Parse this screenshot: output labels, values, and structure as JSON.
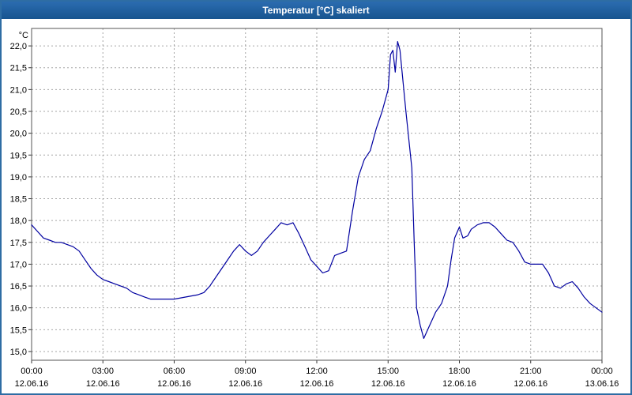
{
  "window": {
    "title": "Temperatur [°C] skaliert",
    "titlebar_color": "#1f5fa0"
  },
  "chart_data": {
    "type": "line",
    "title": "Temperatur [°C] skaliert",
    "xlabel": "",
    "ylabel": "°C",
    "y_unit_label": "°C",
    "ylim": [
      15.0,
      22.0
    ],
    "y_tick_step": 0.5,
    "grid": "dashed",
    "legend": "none",
    "line_color": "#0000a0",
    "grid_color": "#a6a6a6",
    "axis_color": "#555555",
    "y_ticks": [
      {
        "value": 15.0,
        "label": "15,0"
      },
      {
        "value": 15.5,
        "label": "15,5"
      },
      {
        "value": 16.0,
        "label": "16,0"
      },
      {
        "value": 16.5,
        "label": "16,5"
      },
      {
        "value": 17.0,
        "label": "17,0"
      },
      {
        "value": 17.5,
        "label": "17,5"
      },
      {
        "value": 18.0,
        "label": "18,0"
      },
      {
        "value": 18.5,
        "label": "18,5"
      },
      {
        "value": 19.0,
        "label": "19,0"
      },
      {
        "value": 19.5,
        "label": "19,5"
      },
      {
        "value": 20.0,
        "label": "20,0"
      },
      {
        "value": 20.5,
        "label": "20,5"
      },
      {
        "value": 21.0,
        "label": "21,0"
      },
      {
        "value": 21.5,
        "label": "21,5"
      },
      {
        "value": 22.0,
        "label": "22,0"
      }
    ],
    "x_ticks": [
      {
        "hour": 0,
        "time": "00:00",
        "date": "12.06.16"
      },
      {
        "hour": 3,
        "time": "03:00",
        "date": "12.06.16"
      },
      {
        "hour": 6,
        "time": "06:00",
        "date": "12.06.16"
      },
      {
        "hour": 9,
        "time": "09:00",
        "date": "12.06.16"
      },
      {
        "hour": 12,
        "time": "12:00",
        "date": "12.06.16"
      },
      {
        "hour": 15,
        "time": "15:00",
        "date": "12.06.16"
      },
      {
        "hour": 18,
        "time": "18:00",
        "date": "12.06.16"
      },
      {
        "hour": 21,
        "time": "21:00",
        "date": "12.06.16"
      },
      {
        "hour": 24,
        "time": "00:00",
        "date": "13.06.16"
      }
    ],
    "xlim_hours": [
      0,
      24
    ],
    "series": [
      {
        "name": "Temperatur",
        "points": [
          [
            0,
            17.9
          ],
          [
            0.25,
            17.75
          ],
          [
            0.5,
            17.6
          ],
          [
            0.75,
            17.55
          ],
          [
            1,
            17.5
          ],
          [
            1.25,
            17.5
          ],
          [
            1.5,
            17.45
          ],
          [
            1.75,
            17.4
          ],
          [
            2,
            17.3
          ],
          [
            2.25,
            17.1
          ],
          [
            2.5,
            16.9
          ],
          [
            2.75,
            16.75
          ],
          [
            3,
            16.65
          ],
          [
            3.25,
            16.6
          ],
          [
            3.5,
            16.55
          ],
          [
            3.75,
            16.5
          ],
          [
            4,
            16.45
          ],
          [
            4.25,
            16.35
          ],
          [
            4.5,
            16.3
          ],
          [
            4.75,
            16.25
          ],
          [
            5,
            16.2
          ],
          [
            5.5,
            16.2
          ],
          [
            6,
            16.2
          ],
          [
            6.5,
            16.25
          ],
          [
            7,
            16.3
          ],
          [
            7.25,
            16.35
          ],
          [
            7.5,
            16.5
          ],
          [
            7.75,
            16.7
          ],
          [
            8,
            16.9
          ],
          [
            8.25,
            17.1
          ],
          [
            8.5,
            17.3
          ],
          [
            8.75,
            17.45
          ],
          [
            9,
            17.3
          ],
          [
            9.25,
            17.2
          ],
          [
            9.5,
            17.3
          ],
          [
            9.75,
            17.5
          ],
          [
            10,
            17.65
          ],
          [
            10.25,
            17.8
          ],
          [
            10.5,
            17.95
          ],
          [
            10.75,
            17.9
          ],
          [
            11,
            17.95
          ],
          [
            11.25,
            17.7
          ],
          [
            11.5,
            17.4
          ],
          [
            11.75,
            17.1
          ],
          [
            12,
            16.95
          ],
          [
            12.25,
            16.8
          ],
          [
            12.5,
            16.85
          ],
          [
            12.75,
            17.2
          ],
          [
            13,
            17.25
          ],
          [
            13.25,
            17.3
          ],
          [
            13.5,
            18.2
          ],
          [
            13.75,
            19.0
          ],
          [
            14,
            19.4
          ],
          [
            14.25,
            19.6
          ],
          [
            14.5,
            20.1
          ],
          [
            14.75,
            20.5
          ],
          [
            15,
            21.0
          ],
          [
            15.1,
            21.8
          ],
          [
            15.2,
            21.9
          ],
          [
            15.3,
            21.4
          ],
          [
            15.4,
            22.1
          ],
          [
            15.5,
            21.9
          ],
          [
            15.75,
            20.5
          ],
          [
            16,
            19.2
          ],
          [
            16.1,
            17.5
          ],
          [
            16.2,
            16.0
          ],
          [
            16.35,
            15.6
          ],
          [
            16.5,
            15.3
          ],
          [
            16.75,
            15.6
          ],
          [
            17,
            15.9
          ],
          [
            17.25,
            16.1
          ],
          [
            17.5,
            16.5
          ],
          [
            17.65,
            17.1
          ],
          [
            17.8,
            17.6
          ],
          [
            18,
            17.85
          ],
          [
            18.15,
            17.6
          ],
          [
            18.35,
            17.65
          ],
          [
            18.5,
            17.8
          ],
          [
            18.75,
            17.9
          ],
          [
            19,
            17.95
          ],
          [
            19.25,
            17.95
          ],
          [
            19.5,
            17.85
          ],
          [
            19.75,
            17.7
          ],
          [
            20,
            17.55
          ],
          [
            20.25,
            17.5
          ],
          [
            20.5,
            17.3
          ],
          [
            20.75,
            17.05
          ],
          [
            21,
            17.0
          ],
          [
            21.25,
            17.0
          ],
          [
            21.5,
            17.0
          ],
          [
            21.75,
            16.8
          ],
          [
            22,
            16.5
          ],
          [
            22.25,
            16.45
          ],
          [
            22.5,
            16.55
          ],
          [
            22.75,
            16.6
          ],
          [
            23,
            16.45
          ],
          [
            23.25,
            16.25
          ],
          [
            23.5,
            16.1
          ],
          [
            23.75,
            16.0
          ],
          [
            24,
            15.9
          ]
        ]
      }
    ]
  }
}
